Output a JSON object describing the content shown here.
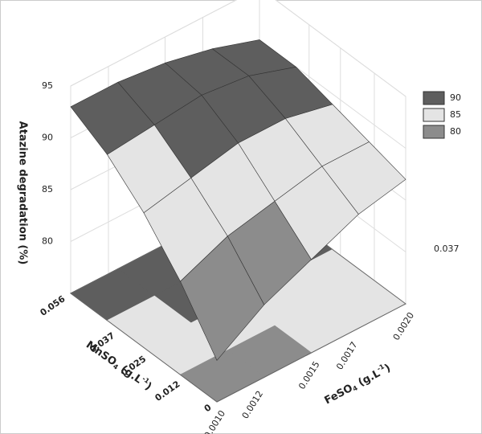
{
  "chart_data": {
    "type": "surface",
    "zlabel": "Atazine degradation (%)",
    "xlabel": [
      "FeSO",
      "4",
      " (g.L",
      "-1",
      ")"
    ],
    "ylabel": [
      "MnSO",
      "4",
      " (g.L",
      "-1",
      ")"
    ],
    "annotation": "0.037",
    "xlim": [
      0.001,
      0.002
    ],
    "ylim": [
      0,
      0.056
    ],
    "zlim": [
      75,
      95
    ],
    "xticks": [
      {
        "value": 0.001,
        "label": "0.0010"
      },
      {
        "value": 0.0012,
        "label": "0.0012"
      },
      {
        "value": 0.0015,
        "label": "0.0015"
      },
      {
        "value": 0.0017,
        "label": "0.0017"
      },
      {
        "value": 0.002,
        "label": "0.0020"
      }
    ],
    "yticks": [
      0,
      0.012,
      0.025,
      0.037,
      0.056
    ],
    "zticks": [
      80,
      85,
      90,
      95
    ],
    "x": [
      0.001,
      0.00125,
      0.0015,
      0.00175,
      0.002
    ],
    "y": [
      0,
      0.014,
      0.028,
      0.042,
      0.056
    ],
    "z": [
      [
        79,
        82,
        84,
        86,
        87
      ],
      [
        84,
        86,
        87,
        88,
        88
      ],
      [
        88,
        89,
        90,
        90,
        89
      ],
      [
        91,
        91.5,
        92,
        91.5,
        90
      ],
      [
        93,
        93,
        92.5,
        91.5,
        90
      ]
    ],
    "levels": [
      {
        "value": 90,
        "color": "#5e5e5e"
      },
      {
        "value": 85,
        "color": "#e4e4e4"
      },
      {
        "value": 80,
        "color": "#8c8c8c"
      }
    ]
  }
}
